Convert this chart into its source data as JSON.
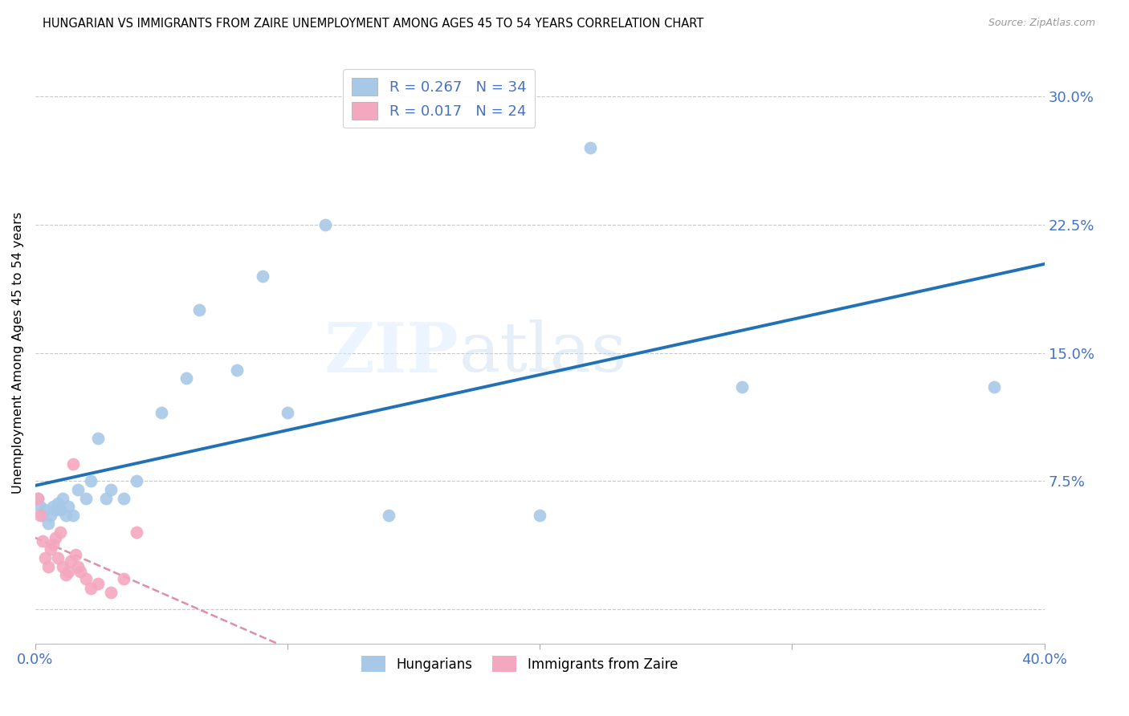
{
  "title": "HUNGARIAN VS IMMIGRANTS FROM ZAIRE UNEMPLOYMENT AMONG AGES 45 TO 54 YEARS CORRELATION CHART",
  "source": "Source: ZipAtlas.com",
  "ylabel": "Unemployment Among Ages 45 to 54 years",
  "xlim": [
    0.0,
    0.4
  ],
  "ylim": [
    -0.02,
    0.32
  ],
  "yticks": [
    0.0,
    0.075,
    0.15,
    0.225,
    0.3
  ],
  "ytick_labels": [
    "",
    "7.5%",
    "15.0%",
    "22.5%",
    "30.0%"
  ],
  "xticks": [
    0.0,
    0.1,
    0.2,
    0.3,
    0.4
  ],
  "xtick_labels": [
    "0.0%",
    "",
    "",
    "",
    "40.0%"
  ],
  "blue_R": 0.267,
  "blue_N": 34,
  "pink_R": 0.017,
  "pink_N": 24,
  "blue_color": "#a8c8e8",
  "pink_color": "#f4a8c0",
  "blue_line_color": "#2171b5",
  "pink_line_color": "#d06080",
  "watermark_zip": "ZIP",
  "watermark_atlas": "atlas",
  "hungarian_x": [
    0.001,
    0.002,
    0.003,
    0.004,
    0.005,
    0.006,
    0.007,
    0.008,
    0.009,
    0.01,
    0.011,
    0.012,
    0.013,
    0.015,
    0.017,
    0.02,
    0.022,
    0.025,
    0.028,
    0.03,
    0.035,
    0.04,
    0.05,
    0.06,
    0.065,
    0.08,
    0.09,
    0.1,
    0.115,
    0.14,
    0.2,
    0.22,
    0.28,
    0.38
  ],
  "hungarian_y": [
    0.065,
    0.06,
    0.055,
    0.058,
    0.05,
    0.055,
    0.06,
    0.058,
    0.062,
    0.058,
    0.065,
    0.055,
    0.06,
    0.055,
    0.07,
    0.065,
    0.075,
    0.1,
    0.065,
    0.07,
    0.065,
    0.075,
    0.115,
    0.135,
    0.175,
    0.14,
    0.195,
    0.115,
    0.225,
    0.055,
    0.055,
    0.27,
    0.13,
    0.13
  ],
  "zaire_x": [
    0.001,
    0.002,
    0.003,
    0.004,
    0.005,
    0.006,
    0.007,
    0.008,
    0.009,
    0.01,
    0.011,
    0.012,
    0.013,
    0.014,
    0.015,
    0.016,
    0.017,
    0.018,
    0.02,
    0.022,
    0.025,
    0.03,
    0.035,
    0.04
  ],
  "zaire_y": [
    0.065,
    0.055,
    0.04,
    0.03,
    0.025,
    0.035,
    0.038,
    0.042,
    0.03,
    0.045,
    0.025,
    0.02,
    0.022,
    0.028,
    0.085,
    0.032,
    0.025,
    0.022,
    0.018,
    0.012,
    0.015,
    0.01,
    0.018,
    0.045
  ]
}
